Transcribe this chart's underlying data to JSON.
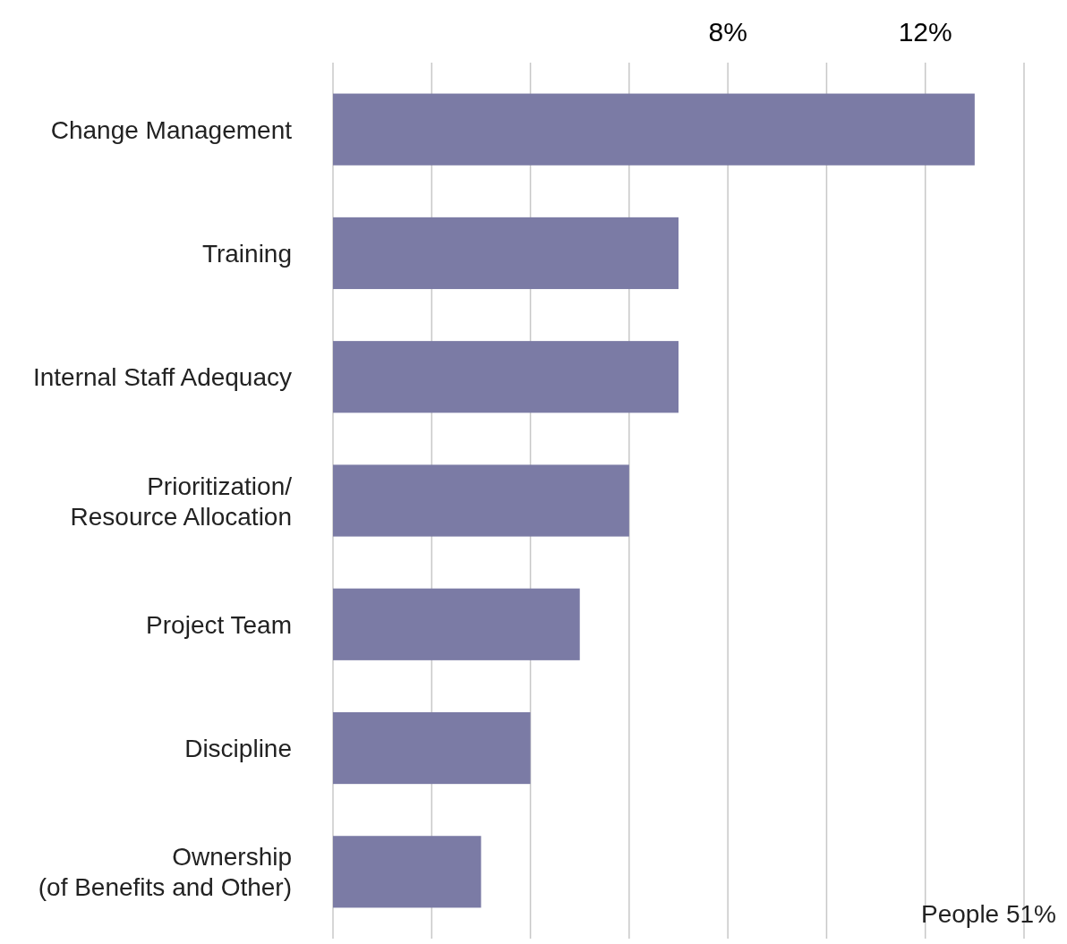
{
  "chart_data": {
    "type": "bar",
    "orientation": "horizontal",
    "categories": [
      "Change Management",
      "Training",
      "Internal Staff Adequacy",
      "Prioritization/\nResource Allocation",
      "Project Team",
      "Discipline",
      "Ownership\n(of Benefits and Other)"
    ],
    "values": [
      13,
      7,
      7,
      6,
      5,
      4,
      3
    ],
    "color": "#7b7ba5",
    "xlim": [
      0,
      14
    ],
    "xticks": [
      {
        "value": 0,
        "label": null
      },
      {
        "value": 2,
        "label": null
      },
      {
        "value": 4,
        "label": null
      },
      {
        "value": 6,
        "label": null
      },
      {
        "value": 8,
        "label": "8%"
      },
      {
        "value": 10,
        "label": null
      },
      {
        "value": 12,
        "label": "12%"
      },
      {
        "value": 14,
        "label": null
      }
    ],
    "grid": "x",
    "annotations": [
      "People 51%"
    ]
  }
}
